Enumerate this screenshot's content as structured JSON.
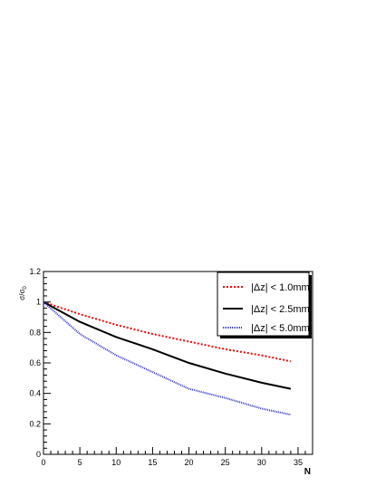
{
  "chart_data": {
    "type": "line",
    "title": "",
    "xlabel": "N",
    "ylabel": "σ/σ",
    "ylabel_sub": "0",
    "xlim": [
      0,
      37
    ],
    "ylim": [
      0,
      1.2
    ],
    "x_ticks": [
      0,
      5,
      10,
      15,
      20,
      25,
      30,
      35
    ],
    "x_tick_labels": [
      "0",
      "5",
      "10",
      "15",
      "20",
      "25",
      "30",
      "35"
    ],
    "y_ticks": [
      0,
      0.2,
      0.4,
      0.6,
      0.8,
      1,
      1.2
    ],
    "y_tick_labels": [
      "0",
      "0.2",
      "0.4",
      "0.6",
      "0.8",
      "1",
      "1.2"
    ],
    "grid": false,
    "legend_position": "top-right",
    "series": [
      {
        "name": "|Δz| < 1.0mm",
        "color": "#ff0000",
        "style": "dotted",
        "x": [
          0,
          5,
          10,
          15,
          20,
          25,
          30,
          34
        ],
        "y": [
          1.0,
          0.92,
          0.85,
          0.79,
          0.74,
          0.69,
          0.65,
          0.61
        ]
      },
      {
        "name": "|Δz| < 2.5mm",
        "color": "#000000",
        "style": "solid",
        "x": [
          0,
          5,
          10,
          15,
          20,
          25,
          30,
          34
        ],
        "y": [
          1.0,
          0.87,
          0.77,
          0.69,
          0.6,
          0.53,
          0.47,
          0.43
        ]
      },
      {
        "name": "|Δz| < 5.0mm",
        "color": "#3333cc",
        "style": "densely-dotted",
        "x": [
          0,
          5,
          10,
          15,
          20,
          25,
          30,
          34
        ],
        "y": [
          1.0,
          0.79,
          0.65,
          0.54,
          0.43,
          0.37,
          0.3,
          0.26
        ]
      }
    ]
  }
}
